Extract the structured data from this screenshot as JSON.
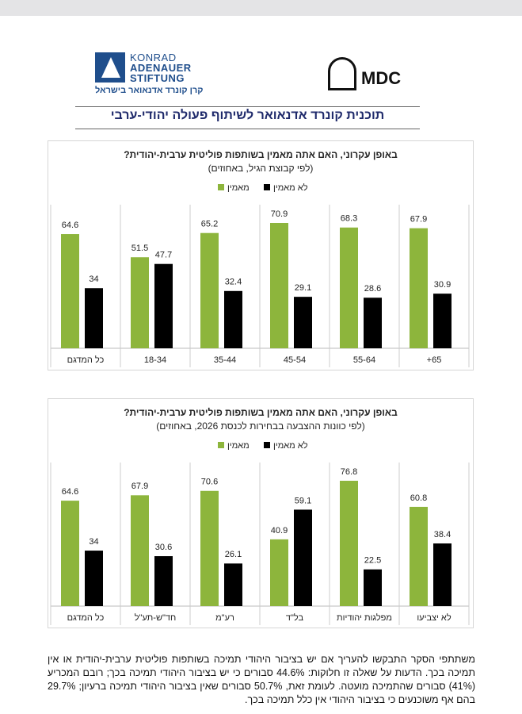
{
  "header": {
    "kas_lines": [
      "KONRAD",
      "ADENAUER",
      "STIFTUNG"
    ],
    "kas_hebrew": "קרן קונרד אדנאואר בישראל",
    "mdc": "MDC"
  },
  "title": "תוכנית קונרד אדנאואר לשיתוף פעולה יהודי-ערבי",
  "chart_data": [
    {
      "type": "bar",
      "title": "באופן עקרוני, האם אתה מאמין בשותפות פוליטית ערבית-יהודית?",
      "subtitle": "(לפי קבוצת הגיל, באחוזים)",
      "categories": [
        "כל המדגם",
        "18-34",
        "35-44",
        "45-54",
        "55-64",
        "65+"
      ],
      "series": [
        {
          "name": "מאמין",
          "color": "#8db53c",
          "values": [
            64.6,
            51.5,
            65.2,
            70.9,
            68.3,
            67.9
          ]
        },
        {
          "name": "לא מאמין",
          "color": "#000000",
          "values": [
            34,
            47.7,
            32.4,
            29.1,
            28.6,
            30.9
          ]
        }
      ]
    },
    {
      "type": "bar",
      "title": "באופן עקרוני, האם אתה מאמין בשותפות פוליטית ערבית-יהודית?",
      "subtitle": "(לפי כוונות ההצבעה בבחירות לכנסת 2026, באחוזים)",
      "categories": [
        "כל המדגם",
        "חד\"ש-תע\"ל",
        "רע\"מ",
        "בל\"ד",
        "מפלגות יהודיות",
        "לא יצביעו"
      ],
      "series": [
        {
          "name": "מאמין",
          "color": "#8db53c",
          "values": [
            64.6,
            67.9,
            70.6,
            40.9,
            76.8,
            60.8
          ]
        },
        {
          "name": "לא מאמין",
          "color": "#000000",
          "values": [
            34,
            30.6,
            26.1,
            59.1,
            22.5,
            38.4
          ]
        }
      ]
    }
  ],
  "footer": "משתתפי הסקר התבקשו להעריך אם יש בציבור היהודי תמיכה בשותפות פוליטית ערבית-יהודית או אין תמיכה בכך. הדעות על שאלה זו חלוקות: 44.6% סבורים כי יש בציבור היהודי תמיכה בכך; רובם המכריע (41%) סבורים שהתמיכה מועטה. לעומת זאת, 50.7% סבורים שאין בציבור היהודי תמיכה ברעיון; 29.7% בהם אף משוכנעים כי בציבור היהודי אין כלל תמיכה בכך."
}
